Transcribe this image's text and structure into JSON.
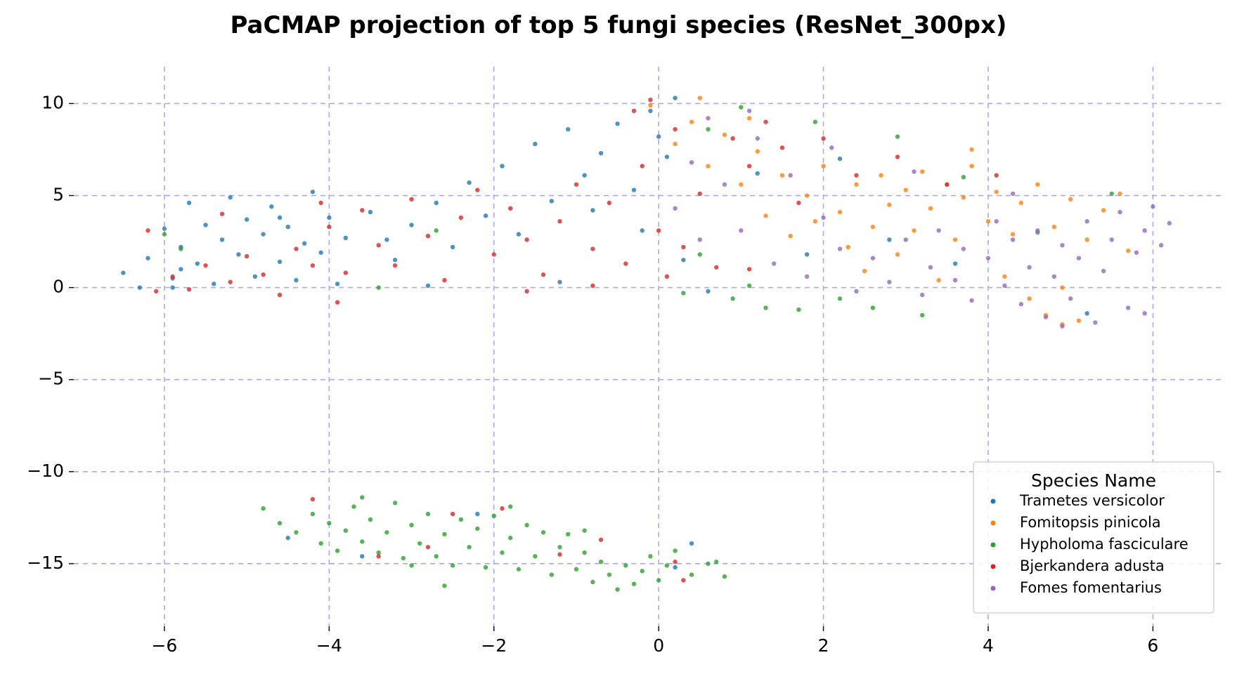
{
  "chart_data": {
    "type": "scatter",
    "title": "PaCMAP projection of top 5 fungi species (ResNet_300px)",
    "xlabel": "",
    "ylabel": "",
    "xlim": [
      -7.1,
      6.85
    ],
    "ylim": [
      -18.4,
      12.0
    ],
    "xticks": [
      -6,
      -4,
      -2,
      0,
      2,
      4,
      6
    ],
    "yticks": [
      10,
      5,
      0,
      -5,
      -10,
      -15
    ],
    "xtick_labels": [
      "−6",
      "−4",
      "−2",
      "0",
      "2",
      "4",
      "6"
    ],
    "ytick_labels": [
      "10",
      "5",
      "0",
      "−5",
      "−10",
      "−15"
    ],
    "grid": true,
    "grid_style": "dashed",
    "grid_color": "#a8a8f5",
    "legend": {
      "title": "Species Name",
      "position": "lower-right"
    },
    "series": [
      {
        "name": "Trametes versicolor",
        "color": "#1f77b4",
        "points": [
          [
            -6.5,
            0.8
          ],
          [
            -6.3,
            0.0
          ],
          [
            -6.2,
            1.6
          ],
          [
            -6.0,
            3.2
          ],
          [
            -5.9,
            0.5
          ],
          [
            -5.8,
            2.2
          ],
          [
            -5.7,
            4.6
          ],
          [
            -5.6,
            1.3
          ],
          [
            -5.5,
            3.4
          ],
          [
            -5.4,
            0.2
          ],
          [
            -5.3,
            2.6
          ],
          [
            -5.2,
            4.9
          ],
          [
            -5.1,
            1.8
          ],
          [
            -5.0,
            3.7
          ],
          [
            -4.9,
            0.6
          ],
          [
            -4.8,
            2.9
          ],
          [
            -4.7,
            4.4
          ],
          [
            -4.6,
            1.4
          ],
          [
            -4.5,
            3.3
          ],
          [
            -4.4,
            0.4
          ],
          [
            -4.3,
            2.4
          ],
          [
            -4.2,
            5.2
          ],
          [
            -4.1,
            1.9
          ],
          [
            -4.0,
            3.8
          ],
          [
            -3.9,
            0.2
          ],
          [
            -3.8,
            2.7
          ],
          [
            -3.5,
            4.1
          ],
          [
            -3.2,
            1.5
          ],
          [
            -3.0,
            3.4
          ],
          [
            -2.7,
            4.6
          ],
          [
            -2.5,
            2.2
          ],
          [
            -2.3,
            5.7
          ],
          [
            -2.1,
            3.9
          ],
          [
            -1.9,
            6.6
          ],
          [
            -1.7,
            2.9
          ],
          [
            -1.5,
            7.8
          ],
          [
            -1.3,
            4.7
          ],
          [
            -1.1,
            8.6
          ],
          [
            -0.9,
            6.1
          ],
          [
            -0.7,
            7.3
          ],
          [
            -0.5,
            8.9
          ],
          [
            -0.3,
            5.3
          ],
          [
            -0.1,
            9.6
          ],
          [
            0.1,
            7.1
          ],
          [
            0.2,
            10.3
          ],
          [
            -0.2,
            3.1
          ],
          [
            0.3,
            1.5
          ],
          [
            0.6,
            -0.2
          ],
          [
            -1.2,
            0.3
          ],
          [
            -2.8,
            0.1
          ],
          [
            5.2,
            -1.4
          ],
          [
            -4.5,
            -13.6
          ],
          [
            0.4,
            -13.9
          ],
          [
            -3.6,
            -14.6
          ],
          [
            0.2,
            -15.2
          ],
          [
            -2.2,
            -12.3
          ],
          [
            -5.8,
            1.0
          ],
          [
            -5.9,
            0.0
          ],
          [
            -4.6,
            3.8
          ],
          [
            -3.3,
            2.6
          ],
          [
            -0.8,
            4.2
          ],
          [
            0.0,
            8.2
          ],
          [
            1.2,
            6.2
          ],
          [
            2.2,
            7.0
          ],
          [
            1.8,
            1.8
          ],
          [
            2.8,
            2.6
          ],
          [
            3.6,
            1.3
          ]
        ]
      },
      {
        "name": "Fomitopsis pinicola",
        "color": "#ff7f0e",
        "points": [
          [
            -0.1,
            9.9
          ],
          [
            0.2,
            7.8
          ],
          [
            0.4,
            9.0
          ],
          [
            0.6,
            6.6
          ],
          [
            0.8,
            8.3
          ],
          [
            1.0,
            5.6
          ],
          [
            1.2,
            7.4
          ],
          [
            1.3,
            3.9
          ],
          [
            1.5,
            6.1
          ],
          [
            1.6,
            2.8
          ],
          [
            1.8,
            5.0
          ],
          [
            1.9,
            3.6
          ],
          [
            2.0,
            6.6
          ],
          [
            2.2,
            4.1
          ],
          [
            2.3,
            2.2
          ],
          [
            2.4,
            5.6
          ],
          [
            2.6,
            3.3
          ],
          [
            2.7,
            6.1
          ],
          [
            2.8,
            4.5
          ],
          [
            3.0,
            5.3
          ],
          [
            3.1,
            3.1
          ],
          [
            3.2,
            6.3
          ],
          [
            3.3,
            4.3
          ],
          [
            3.5,
            5.6
          ],
          [
            3.6,
            2.6
          ],
          [
            3.7,
            4.9
          ],
          [
            3.8,
            6.6
          ],
          [
            4.0,
            3.6
          ],
          [
            4.1,
            5.2
          ],
          [
            4.3,
            2.9
          ],
          [
            4.4,
            4.6
          ],
          [
            4.6,
            5.6
          ],
          [
            4.8,
            3.3
          ],
          [
            5.0,
            4.8
          ],
          [
            5.2,
            2.6
          ],
          [
            5.4,
            4.2
          ],
          [
            5.6,
            5.1
          ],
          [
            4.2,
            0.6
          ],
          [
            4.5,
            -0.6
          ],
          [
            4.7,
            -1.5
          ],
          [
            4.9,
            -2.0
          ],
          [
            5.1,
            -1.8
          ],
          [
            3.4,
            0.4
          ],
          [
            2.5,
            0.9
          ],
          [
            1.1,
            9.2
          ],
          [
            0.5,
            10.3
          ],
          [
            3.8,
            7.5
          ],
          [
            2.9,
            1.8
          ],
          [
            4.9,
            0.0
          ],
          [
            5.7,
            2.0
          ]
        ]
      },
      {
        "name": "Hypholoma fasciculare",
        "color": "#2ca02c",
        "points": [
          [
            -4.6,
            -12.8
          ],
          [
            -4.4,
            -13.3
          ],
          [
            -4.2,
            -12.3
          ],
          [
            -4.1,
            -13.9
          ],
          [
            -4.0,
            -12.8
          ],
          [
            -3.9,
            -14.3
          ],
          [
            -3.8,
            -13.2
          ],
          [
            -3.7,
            -11.9
          ],
          [
            -3.6,
            -13.8
          ],
          [
            -3.5,
            -12.6
          ],
          [
            -3.4,
            -14.4
          ],
          [
            -3.3,
            -13.3
          ],
          [
            -3.2,
            -11.7
          ],
          [
            -3.1,
            -14.7
          ],
          [
            -3.0,
            -12.9
          ],
          [
            -2.9,
            -13.9
          ],
          [
            -2.8,
            -12.3
          ],
          [
            -2.7,
            -14.6
          ],
          [
            -2.6,
            -13.4
          ],
          [
            -2.5,
            -15.1
          ],
          [
            -2.4,
            -12.6
          ],
          [
            -2.3,
            -14.1
          ],
          [
            -2.2,
            -13.1
          ],
          [
            -2.1,
            -15.2
          ],
          [
            -2.0,
            -12.4
          ],
          [
            -1.9,
            -14.4
          ],
          [
            -1.8,
            -13.6
          ],
          [
            -1.7,
            -15.3
          ],
          [
            -1.6,
            -12.9
          ],
          [
            -1.5,
            -14.6
          ],
          [
            -1.4,
            -13.3
          ],
          [
            -1.3,
            -15.6
          ],
          [
            -1.2,
            -14.1
          ],
          [
            -1.1,
            -13.4
          ],
          [
            -1.0,
            -15.3
          ],
          [
            -0.9,
            -14.4
          ],
          [
            -0.8,
            -16.0
          ],
          [
            -0.7,
            -14.9
          ],
          [
            -0.6,
            -15.6
          ],
          [
            -0.5,
            -16.4
          ],
          [
            -0.4,
            -15.1
          ],
          [
            -0.3,
            -16.1
          ],
          [
            -0.2,
            -15.4
          ],
          [
            -0.1,
            -14.6
          ],
          [
            0.0,
            -15.9
          ],
          [
            0.1,
            -15.1
          ],
          [
            0.2,
            -14.3
          ],
          [
            0.4,
            -15.6
          ],
          [
            0.6,
            -15.0
          ],
          [
            0.8,
            -15.7
          ],
          [
            -2.6,
            -16.2
          ],
          [
            -1.8,
            -11.9
          ],
          [
            -3.6,
            -11.4
          ],
          [
            0.7,
            -14.9
          ],
          [
            -0.9,
            -13.2
          ],
          [
            -3.0,
            -15.1
          ],
          [
            -4.8,
            -12.0
          ],
          [
            1.0,
            9.8
          ],
          [
            0.6,
            8.6
          ],
          [
            0.9,
            -0.6
          ],
          [
            1.3,
            -1.1
          ],
          [
            1.7,
            -1.2
          ],
          [
            2.2,
            -0.6
          ],
          [
            2.6,
            -1.1
          ],
          [
            3.2,
            -1.5
          ],
          [
            0.5,
            1.8
          ],
          [
            -3.4,
            0.0
          ],
          [
            -2.7,
            3.1
          ],
          [
            -5.8,
            2.1
          ],
          [
            -6.0,
            2.9
          ],
          [
            1.9,
            9.0
          ],
          [
            2.9,
            8.2
          ],
          [
            3.7,
            6.0
          ],
          [
            4.6,
            3.0
          ],
          [
            5.5,
            5.1
          ],
          [
            1.1,
            0.1
          ],
          [
            0.3,
            -0.3
          ]
        ]
      },
      {
        "name": "Bjerkandera adusta",
        "color": "#d62728",
        "points": [
          [
            -6.1,
            -0.2
          ],
          [
            -5.9,
            0.6
          ],
          [
            -5.7,
            -0.1
          ],
          [
            -5.5,
            1.2
          ],
          [
            -5.2,
            0.3
          ],
          [
            -5.0,
            1.7
          ],
          [
            -4.8,
            0.7
          ],
          [
            -4.6,
            -0.4
          ],
          [
            -4.4,
            2.1
          ],
          [
            -4.2,
            1.2
          ],
          [
            -4.0,
            3.3
          ],
          [
            -3.8,
            0.8
          ],
          [
            -3.6,
            4.2
          ],
          [
            -3.4,
            2.3
          ],
          [
            -3.2,
            1.2
          ],
          [
            -3.0,
            4.8
          ],
          [
            -2.8,
            2.8
          ],
          [
            -2.6,
            0.4
          ],
          [
            -2.4,
            3.8
          ],
          [
            -2.2,
            5.3
          ],
          [
            -2.0,
            1.8
          ],
          [
            -1.8,
            4.3
          ],
          [
            -1.6,
            2.6
          ],
          [
            -1.4,
            0.7
          ],
          [
            -1.2,
            3.6
          ],
          [
            -1.0,
            5.6
          ],
          [
            -0.8,
            2.1
          ],
          [
            -0.6,
            4.6
          ],
          [
            -0.4,
            1.3
          ],
          [
            -0.2,
            6.6
          ],
          [
            0.0,
            3.1
          ],
          [
            0.1,
            0.6
          ],
          [
            0.2,
            8.6
          ],
          [
            -0.3,
            9.6
          ],
          [
            -0.1,
            10.2
          ],
          [
            0.3,
            2.2
          ],
          [
            0.5,
            5.1
          ],
          [
            0.7,
            1.1
          ],
          [
            0.9,
            8.1
          ],
          [
            1.1,
            6.6
          ],
          [
            1.3,
            9.0
          ],
          [
            1.5,
            7.6
          ],
          [
            1.7,
            4.6
          ],
          [
            2.0,
            8.1
          ],
          [
            2.4,
            6.1
          ],
          [
            2.9,
            7.1
          ],
          [
            3.5,
            5.6
          ],
          [
            4.1,
            6.1
          ],
          [
            -4.2,
            -11.5
          ],
          [
            -2.5,
            -12.3
          ],
          [
            -1.9,
            -12.0
          ],
          [
            -0.7,
            -13.7
          ],
          [
            0.3,
            -15.9
          ],
          [
            -3.4,
            -14.6
          ],
          [
            -2.8,
            -14.1
          ],
          [
            -1.2,
            -14.5
          ],
          [
            0.2,
            -14.9
          ],
          [
            -6.2,
            3.1
          ],
          [
            -5.3,
            4.0
          ],
          [
            -4.1,
            4.6
          ],
          [
            -1.6,
            -0.2
          ],
          [
            -0.8,
            0.1
          ],
          [
            1.1,
            1.0
          ],
          [
            -3.9,
            -0.8
          ]
        ]
      },
      {
        "name": "Fomes fomentarius",
        "color": "#9467bd",
        "points": [
          [
            0.2,
            4.3
          ],
          [
            0.4,
            6.8
          ],
          [
            0.5,
            2.6
          ],
          [
            0.6,
            9.2
          ],
          [
            0.8,
            5.6
          ],
          [
            1.0,
            3.1
          ],
          [
            1.2,
            8.1
          ],
          [
            1.4,
            1.3
          ],
          [
            1.6,
            6.1
          ],
          [
            1.8,
            0.6
          ],
          [
            2.0,
            3.8
          ],
          [
            2.2,
            2.1
          ],
          [
            2.4,
            -0.2
          ],
          [
            2.6,
            1.6
          ],
          [
            2.8,
            0.3
          ],
          [
            3.0,
            2.6
          ],
          [
            3.2,
            -0.4
          ],
          [
            3.3,
            1.1
          ],
          [
            3.4,
            3.1
          ],
          [
            3.6,
            0.4
          ],
          [
            3.7,
            2.1
          ],
          [
            3.8,
            -0.7
          ],
          [
            4.0,
            1.6
          ],
          [
            4.1,
            3.6
          ],
          [
            4.2,
            0.1
          ],
          [
            4.3,
            2.6
          ],
          [
            4.4,
            -0.9
          ],
          [
            4.5,
            1.1
          ],
          [
            4.6,
            3.1
          ],
          [
            4.7,
            -1.6
          ],
          [
            4.8,
            0.6
          ],
          [
            4.9,
            2.3
          ],
          [
            5.0,
            -0.6
          ],
          [
            5.1,
            1.6
          ],
          [
            5.2,
            3.6
          ],
          [
            5.3,
            -1.9
          ],
          [
            5.4,
            0.9
          ],
          [
            5.5,
            2.6
          ],
          [
            5.6,
            4.1
          ],
          [
            5.7,
            -1.1
          ],
          [
            5.8,
            1.9
          ],
          [
            5.9,
            3.1
          ],
          [
            6.0,
            4.4
          ],
          [
            6.1,
            2.3
          ],
          [
            6.2,
            3.5
          ],
          [
            1.1,
            9.6
          ],
          [
            2.1,
            7.6
          ],
          [
            3.1,
            6.3
          ],
          [
            4.3,
            5.1
          ],
          [
            4.9,
            -2.1
          ],
          [
            5.9,
            -1.4
          ]
        ]
      }
    ]
  }
}
